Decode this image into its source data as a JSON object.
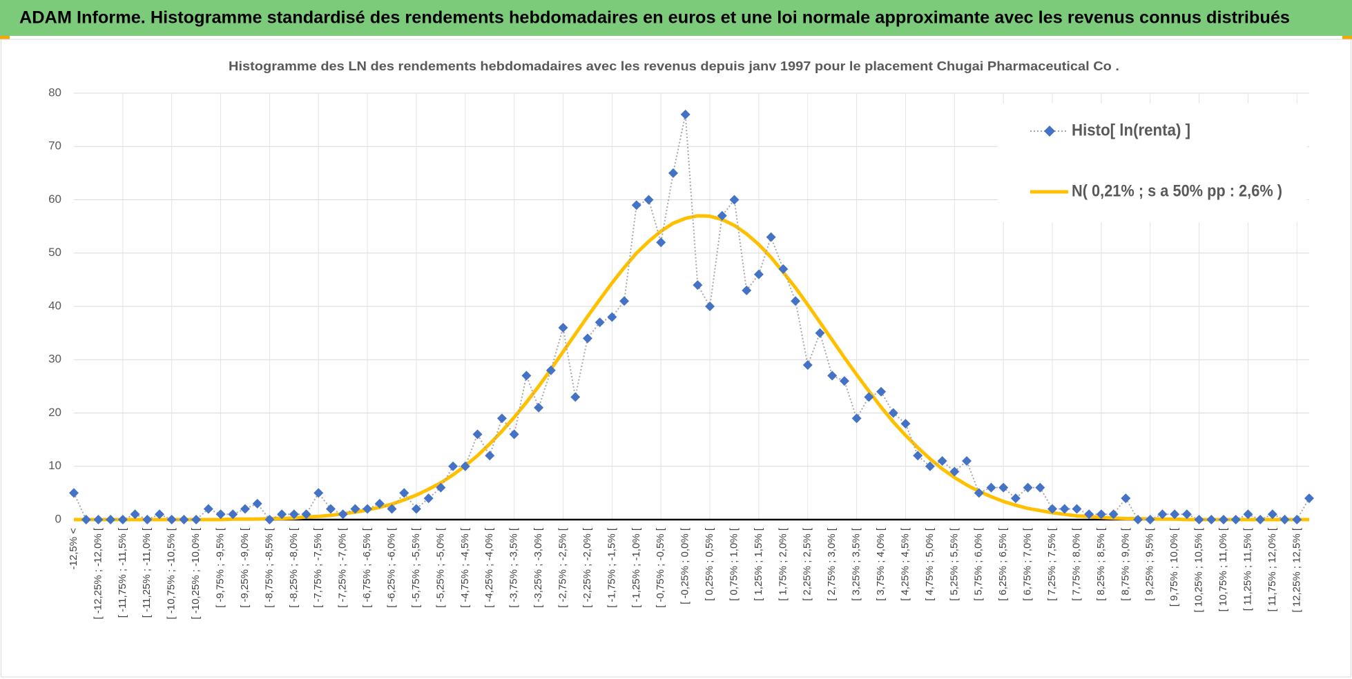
{
  "header": {
    "title": "ADAM Informe. Histogramme standardisé des rendements hebdomadaires en euros et une loi normale approximante avec les revenus connus distribués"
  },
  "chart_data": {
    "type": "line",
    "title": "Histogramme  des LN des rendements  hebdomadaires avec les revenus depuis janv 1997 pour le placement Chugai Pharmaceutical Co .",
    "categories": [
      "-12,5% <",
      null,
      "[ -12,25% ; -12,0% [",
      null,
      "[ -11,75% ; -11,5% [",
      null,
      "[ -11,25% ; -11,0% [",
      null,
      "[ -10,75% ; -10,5% [",
      null,
      "[ -10,25% ; -10,0% [",
      null,
      "[ -9,75% ; -9,5% [",
      null,
      "[ -9,25% ; -9,0% [",
      null,
      "[ -8,75% ; -8,5% [",
      null,
      "[ -8,25% ; -8,0% [",
      null,
      "[ -7,75% ; -7,5% [",
      null,
      "[ -7,25% ; -7,0% [",
      null,
      "[ -6,75% ; -6,5% [",
      null,
      "[ -6,25% ; -6,0% [",
      null,
      "[ -5,75% ; -5,5% [",
      null,
      "[ -5,25% ; -5,0% [",
      null,
      "[ -4,75% ; -4,5% [",
      null,
      "[ -4,25% ; -4,0% [",
      null,
      "[ -3,75% ; -3,5% [",
      null,
      "[ -3,25% ; -3,0% [",
      null,
      "[ -2,75% ; -2,5% [",
      null,
      "[ -2,25% ; -2,0% [",
      null,
      "[ -1,75% ; -1,5% [",
      null,
      "[ -1,25% ; -1,0% [",
      null,
      "[ -0,75% ; -0,5% [",
      null,
      "[ -0,25% ; 0,0% [",
      null,
      "[ 0,25% ; 0,5% [",
      null,
      "[ 0,75% ; 1,0% [",
      null,
      "[ 1,25% ; 1,5% [",
      null,
      "[ 1,75% ; 2,0% [",
      null,
      "[ 2,25% ; 2,5% [",
      null,
      "[ 2,75% ; 3,0% [",
      null,
      "[ 3,25% ; 3,5% [",
      null,
      "[ 3,75% ; 4,0% [",
      null,
      "[ 4,25% ; 4,5% [",
      null,
      "[ 4,75% ; 5,0% [",
      null,
      "[ 5,25% ; 5,5% [",
      null,
      "[ 5,75% ; 6,0% [",
      null,
      "[ 6,25% ; 6,5% [",
      null,
      "[ 6,75% ; 7,0% [",
      null,
      "[ 7,25% ; 7,5% [",
      null,
      "[ 7,75% ; 8,0% [",
      null,
      "[ 8,25% ; 8,5% [",
      null,
      "[ 8,75% ; 9,0% [",
      null,
      "[ 9,25% ; 9,5% [",
      null,
      "[ 9,75% ; 10,0% [",
      null,
      "[ 10,25% ; 10,5% [",
      null,
      "[ 10,75% ; 11,0% [",
      null,
      "[ 11,25% ; 11,5% [",
      null,
      "[ 11,75% ; 12,0% [",
      null,
      "[ 12,25% ; 12,5% [",
      null
    ],
    "series": [
      {
        "name": "Histo[ ln(renta) ]",
        "color": "#4472c4",
        "values": [
          5,
          0,
          0,
          0,
          0,
          1,
          0,
          1,
          0,
          0,
          0,
          2,
          1,
          1,
          2,
          3,
          0,
          1,
          1,
          1,
          5,
          2,
          1,
          2,
          2,
          3,
          2,
          5,
          2,
          4,
          6,
          10,
          10,
          16,
          12,
          19,
          16,
          27,
          21,
          28,
          36,
          23,
          34,
          37,
          38,
          41,
          59,
          60,
          52,
          65,
          76,
          44,
          40,
          57,
          60,
          43,
          46,
          53,
          47,
          41,
          29,
          35,
          27,
          26,
          19,
          23,
          24,
          20,
          18,
          12,
          10,
          11,
          9,
          11,
          5,
          6,
          6,
          4,
          6,
          6,
          2,
          2,
          2,
          1,
          1,
          1,
          4,
          0,
          0,
          1,
          1,
          1,
          0,
          0,
          0,
          0,
          1,
          0,
          1,
          0,
          0,
          4
        ]
      },
      {
        "name": "N( 0,21% ; s a 50% pp : 2,6% )",
        "color": "#ffc000",
        "values": [
          0,
          0,
          0,
          0,
          0,
          0,
          0,
          0,
          0,
          0,
          0,
          0,
          0,
          0.1,
          0.1,
          0.1,
          0.2,
          0.2,
          0.3,
          0.5,
          0.6,
          0.8,
          1.1,
          1.4,
          1.8,
          2.3,
          2.9,
          3.7,
          4.6,
          5.7,
          6.9,
          8.4,
          10.1,
          12.0,
          14.2,
          16.6,
          19.2,
          22.0,
          25.0,
          28.2,
          31.5,
          34.8,
          38.1,
          41.3,
          44.4,
          47.3,
          50.0,
          52.2,
          54.1,
          55.6,
          56.5,
          57.0,
          56.9,
          56.3,
          55.2,
          53.6,
          51.6,
          49.2,
          46.4,
          43.5,
          40.3,
          37.0,
          33.7,
          30.4,
          27.2,
          24.1,
          21.1,
          18.3,
          15.8,
          13.5,
          11.4,
          9.5,
          7.9,
          6.5,
          5.3,
          4.3,
          3.4,
          2.7,
          2.1,
          1.7,
          1.3,
          1.0,
          0.7,
          0.6,
          0.4,
          0.3,
          0.2,
          0.2,
          0.1,
          0.1,
          0.1,
          0,
          0,
          0,
          0,
          0,
          0,
          0,
          0,
          0,
          0,
          0
        ]
      }
    ],
    "ylim": [
      0,
      80
    ],
    "yticks": [
      0,
      10,
      20,
      30,
      40,
      50,
      60,
      70,
      80
    ],
    "grid": true,
    "legend": "top-right"
  }
}
